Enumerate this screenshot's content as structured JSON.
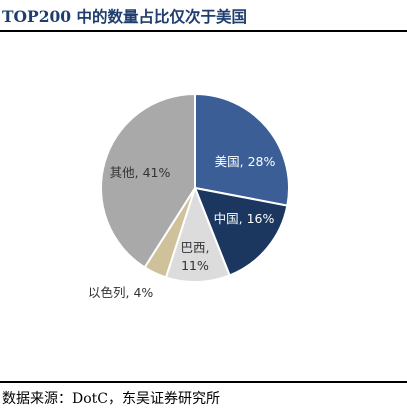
{
  "title": "TOP200 中的数量占比仅次于美国",
  "source": "数据来源：DotC，东吴证券研究所",
  "chart_data": {
    "type": "pie",
    "title": "TOP200 中的数量占比仅次于美国",
    "slices": [
      {
        "name": "美国",
        "value": 28,
        "label": "美国, 28%",
        "color": "#3b5e97",
        "text_color": "#ffffff"
      },
      {
        "name": "中国",
        "value": 16,
        "label": "中国, 16%",
        "color": "#1b375f",
        "text_color": "#ffffff"
      },
      {
        "name": "巴西",
        "value": 11,
        "label_lines": [
          "巴西,",
          "11%"
        ],
        "color": "#dcdcdc",
        "text_color": "#333333"
      },
      {
        "name": "以色列",
        "value": 4,
        "label": "以色列, 4%",
        "color": "#cfc29a",
        "text_color": "#333333"
      },
      {
        "name": "其他",
        "value": 41,
        "label": "其他, 41%",
        "color": "#a9a9a9",
        "text_color": "#333333"
      }
    ]
  }
}
